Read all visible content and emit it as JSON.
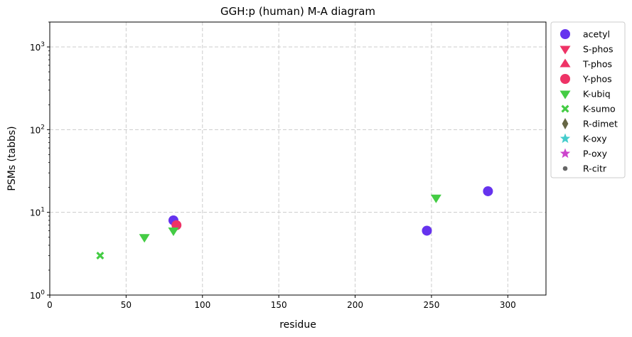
{
  "chart_data": {
    "type": "scatter",
    "title": "GGH:p (human) M-A diagram",
    "xlabel": "residue",
    "ylabel": "PSMs (tabbs)",
    "xlim": [
      0,
      325
    ],
    "ylim": [
      1,
      2000
    ],
    "yscale": "log",
    "grid": true,
    "legend_placement": "outside-right",
    "x_ticks": [
      0,
      50,
      100,
      150,
      200,
      250,
      300
    ],
    "y_ticks": [
      {
        "value": 1,
        "base": "10",
        "exp": "0"
      },
      {
        "value": 10,
        "base": "10",
        "exp": "1"
      },
      {
        "value": 100,
        "base": "10",
        "exp": "2"
      },
      {
        "value": 1000,
        "base": "10",
        "exp": "3"
      }
    ],
    "series": [
      {
        "name": "acetyl",
        "marker": "circle",
        "color": "#6633ee",
        "points": [
          {
            "x": 81,
            "y": 8
          },
          {
            "x": 247,
            "y": 6
          },
          {
            "x": 287,
            "y": 18
          }
        ]
      },
      {
        "name": "S-phos",
        "marker": "triangle-down",
        "color": "#ee3366",
        "points": []
      },
      {
        "name": "T-phos",
        "marker": "triangle-up",
        "color": "#ee3366",
        "points": []
      },
      {
        "name": "Y-phos",
        "marker": "circle",
        "color": "#ee3366",
        "points": [
          {
            "x": 83,
            "y": 7
          }
        ]
      },
      {
        "name": "K-ubiq",
        "marker": "triangle-down",
        "color": "#44cc44",
        "points": [
          {
            "x": 62,
            "y": 5
          },
          {
            "x": 81,
            "y": 6
          },
          {
            "x": 253,
            "y": 15
          }
        ]
      },
      {
        "name": "K-sumo",
        "marker": "x-cross",
        "color": "#44cc44",
        "points": [
          {
            "x": 33,
            "y": 3
          }
        ]
      },
      {
        "name": "R-dimet",
        "marker": "diamond",
        "color": "#666644",
        "points": []
      },
      {
        "name": "K-oxy",
        "marker": "star",
        "color": "#44cccc",
        "points": []
      },
      {
        "name": "P-oxy",
        "marker": "star",
        "color": "#cc44cc",
        "points": []
      },
      {
        "name": "R-citr",
        "marker": "dot",
        "color": "#666666",
        "points": []
      }
    ]
  }
}
